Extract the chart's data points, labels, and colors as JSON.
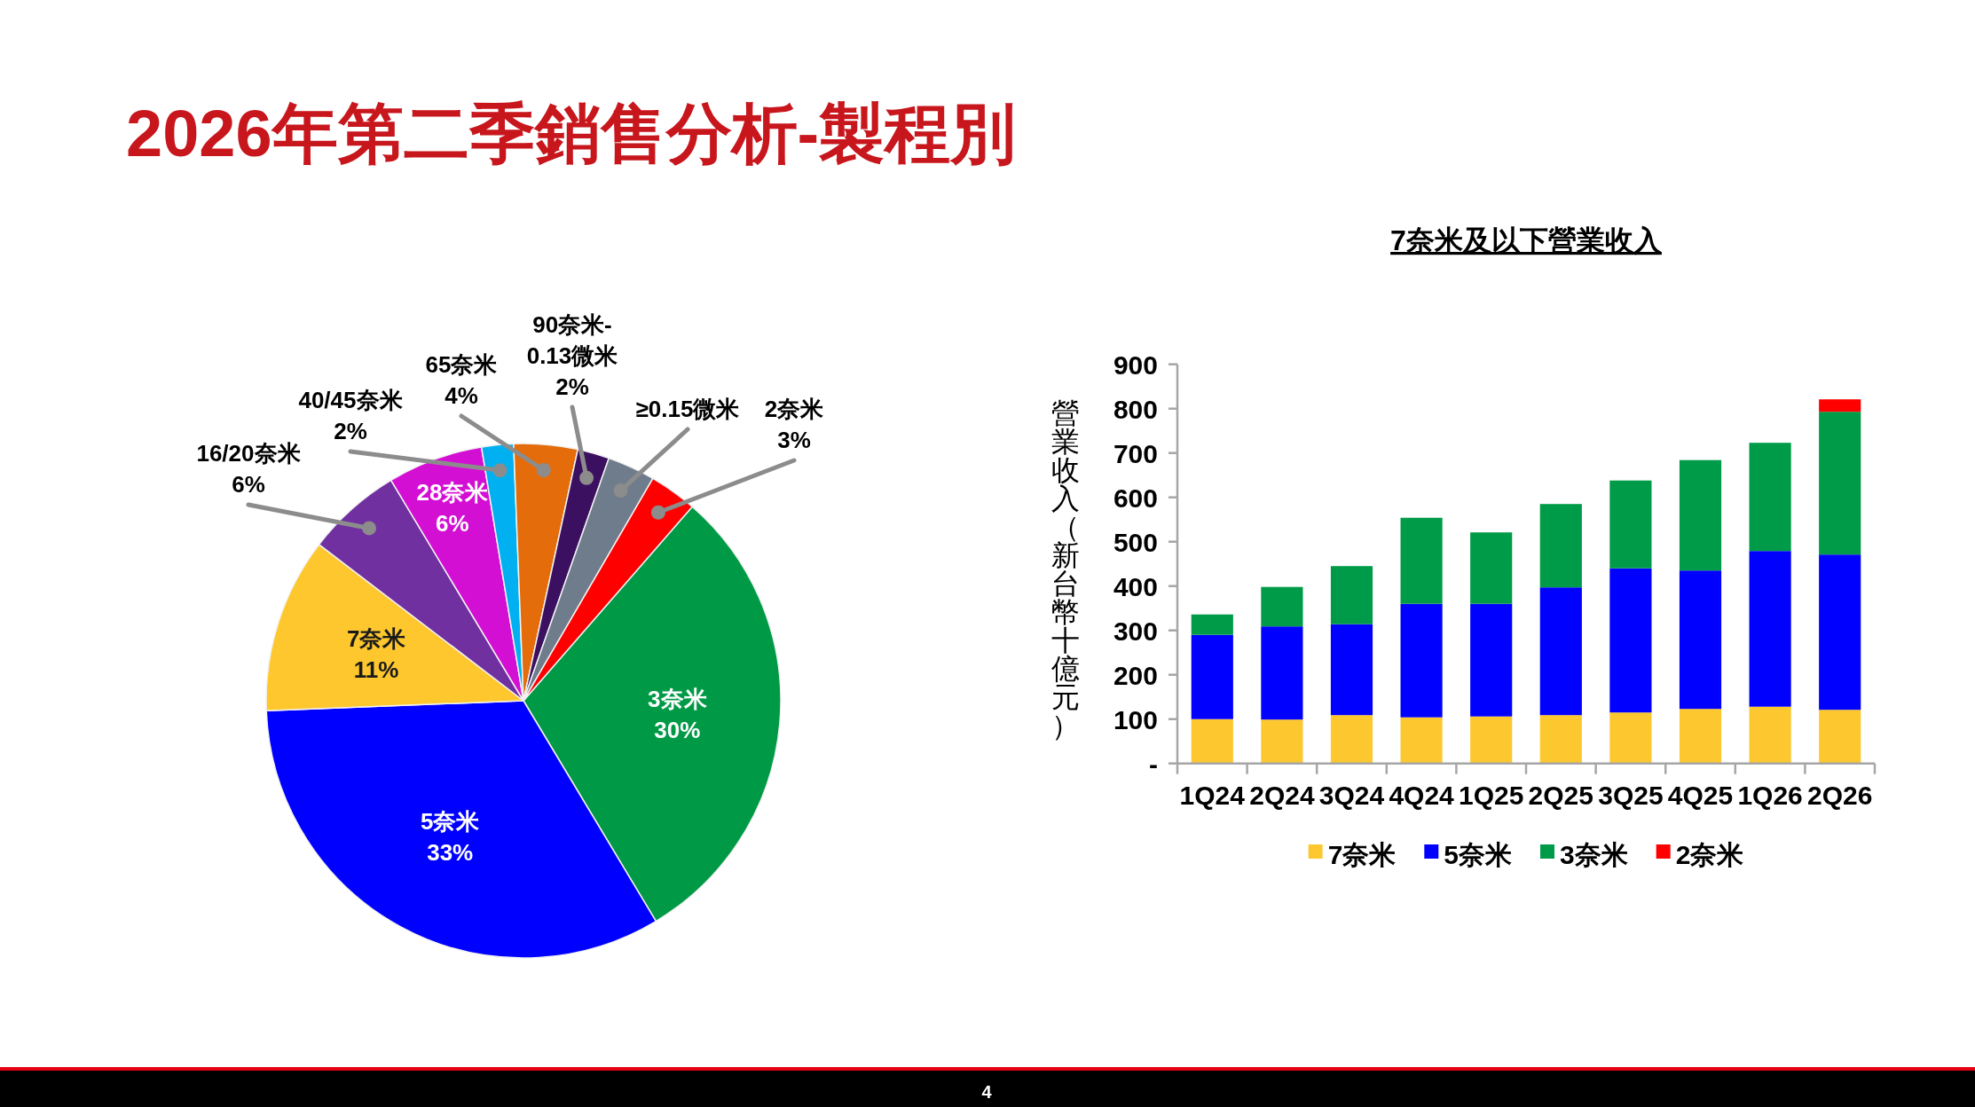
{
  "chart_data": [
    {
      "type": "pie",
      "title": "2026年第二季銷售分析-製程別",
      "categories": [
        "3奈米",
        "5奈米",
        "7奈米",
        "16/20奈米",
        "28奈米",
        "40/45奈米",
        "65奈米",
        "90奈米-0.13微米",
        "≥0.15微米",
        "2奈米"
      ],
      "values": [
        30,
        33,
        11,
        6,
        6,
        2,
        4,
        2,
        3,
        3
      ],
      "value_labels": [
        "30%",
        "33%",
        "11%",
        "6%",
        "6%",
        "2%",
        "4%",
        "2%",
        null,
        "3%"
      ],
      "colors": [
        "#009a46",
        "#0000ff",
        "#fec72e",
        "#7030a0",
        "#d40fd4",
        "#00b0f0",
        "#e46c0a",
        "#3c1060",
        "#6f7c8c",
        "#ff0000"
      ],
      "annotations": [
        "4"
      ]
    },
    {
      "type": "bar",
      "stacked": true,
      "title": "7奈米及以下營業收入",
      "ylabel": "營業收入（新台幣十億元）",
      "categories": [
        "1Q24",
        "2Q24",
        "3Q24",
        "4Q24",
        "1Q25",
        "2Q25",
        "3Q25",
        "4Q25",
        "1Q26",
        "2Q26"
      ],
      "series": [
        {
          "name": "7奈米",
          "color": "#fdc82f",
          "values": [
            100,
            99,
            109,
            104,
            106,
            109,
            115,
            123,
            128,
            121
          ]
        },
        {
          "name": "5奈米",
          "color": "#0000ff",
          "values": [
            190,
            210,
            205,
            256,
            254,
            288,
            325,
            312,
            351,
            350
          ]
        },
        {
          "name": "3奈米",
          "color": "#009b48",
          "values": [
            46,
            89,
            131,
            194,
            161,
            188,
            198,
            249,
            244,
            322
          ]
        },
        {
          "name": "2奈米",
          "color": "#ff0000",
          "values": [
            null,
            null,
            null,
            null,
            null,
            null,
            null,
            null,
            null,
            28
          ]
        }
      ],
      "ylim": [
        0,
        900
      ],
      "yticks": [
        {
          "value": 0,
          "label": "-"
        },
        100,
        200,
        300,
        400,
        500,
        600,
        700,
        800,
        900
      ],
      "legend": "bottom"
    }
  ]
}
